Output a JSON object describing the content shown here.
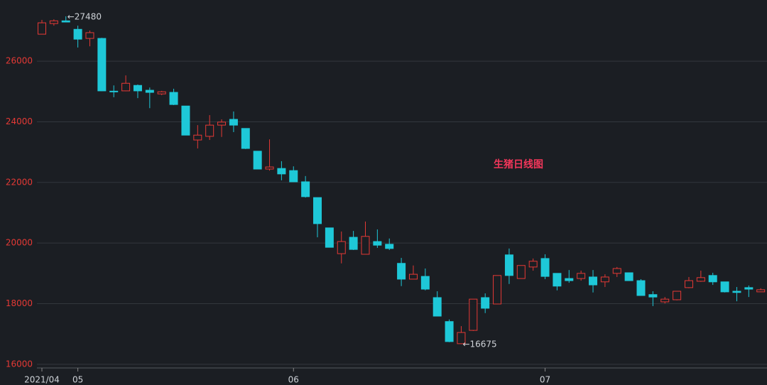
{
  "chart_data": {
    "type": "candlestick",
    "title": "生猪日线图",
    "categories": [
      "2021/04",
      null,
      null,
      "05",
      null,
      null,
      null,
      null,
      null,
      null,
      null,
      null,
      null,
      null,
      null,
      null,
      null,
      null,
      null,
      null,
      null,
      "06",
      null,
      null,
      null,
      null,
      null,
      null,
      null,
      null,
      null,
      null,
      null,
      null,
      null,
      null,
      null,
      null,
      null,
      null,
      null,
      null,
      "07",
      null,
      null,
      null,
      null,
      null,
      null,
      null,
      null,
      null,
      null,
      null,
      null,
      null,
      null,
      null,
      null,
      null,
      null
    ],
    "series": [
      {
        "up_color": "#e53935",
        "down_color": "#1ec8d8",
        "open": [
          26890,
          27240,
          27330,
          27050,
          26750,
          26750,
          25010,
          25020,
          25200,
          25040,
          24920,
          24970,
          24520,
          23400,
          23520,
          23890,
          24080,
          23780,
          23030,
          22440,
          22460,
          22390,
          22020,
          21500,
          20500,
          19650,
          20190,
          19630,
          20050,
          19960,
          19330,
          18810,
          18900,
          18200,
          17410,
          16680,
          17120,
          18200,
          17990,
          19610,
          18830,
          19210,
          19490,
          19000,
          18830,
          18830,
          18880,
          18720,
          19000,
          19020,
          18760,
          18300,
          18060,
          18130,
          18530,
          18740,
          18930,
          18720,
          18410,
          18530,
          18390
        ],
        "high": [
          27360,
          27380,
          27480,
          27170,
          27010,
          26770,
          25200,
          25530,
          25230,
          25130,
          25020,
          25090,
          24520,
          23890,
          24220,
          24080,
          24340,
          23780,
          23030,
          23420,
          22700,
          22530,
          22210,
          21500,
          20500,
          20380,
          20400,
          20710,
          20450,
          20150,
          19510,
          19260,
          19160,
          18410,
          17480,
          17260,
          18150,
          18340,
          18930,
          19820,
          19260,
          19490,
          19630,
          19000,
          19110,
          19090,
          19110,
          18970,
          19210,
          19020,
          18810,
          18410,
          18220,
          18410,
          18880,
          19090,
          19020,
          18720,
          18550,
          18600,
          18510
        ],
        "low": [
          26880,
          27170,
          27280,
          26450,
          26490,
          25010,
          24810,
          25010,
          24780,
          24450,
          24880,
          24550,
          23560,
          23120,
          23400,
          23500,
          23660,
          23100,
          22440,
          22390,
          22070,
          22020,
          21500,
          20190,
          19860,
          19330,
          19770,
          19630,
          19840,
          19770,
          18580,
          18810,
          18440,
          17590,
          16730,
          16675,
          17100,
          17690,
          17990,
          18650,
          18830,
          19090,
          18810,
          18440,
          18690,
          18760,
          18370,
          18550,
          18880,
          18760,
          18270,
          17920,
          18010,
          18110,
          18510,
          18720,
          18620,
          18370,
          18080,
          18220,
          18390
        ],
        "close": [
          27265,
          27330,
          27290,
          26725,
          26940,
          25020,
          24990,
          25270,
          25020,
          24970,
          24990,
          24570,
          23560,
          23560,
          23890,
          23990,
          23890,
          23120,
          22440,
          22510,
          22280,
          22020,
          21530,
          20640,
          19860,
          20050,
          19790,
          20220,
          19930,
          19820,
          18810,
          18970,
          18480,
          17590,
          16750,
          17050,
          18150,
          17850,
          18930,
          18930,
          19260,
          19400,
          18900,
          18580,
          18760,
          19000,
          18620,
          18880,
          19160,
          18760,
          18270,
          18220,
          18150,
          18410,
          18760,
          18860,
          18720,
          18390,
          18370,
          18480,
          18460
        ]
      }
    ],
    "extremes": [
      {
        "value": 27480,
        "label": "←27480"
      },
      {
        "value": 16675,
        "label": "←16675"
      }
    ],
    "ylim": [
      15880,
      27900
    ],
    "yticks": [
      16000,
      18000,
      20000,
      22000,
      24000,
      26000
    ],
    "grid": true
  }
}
